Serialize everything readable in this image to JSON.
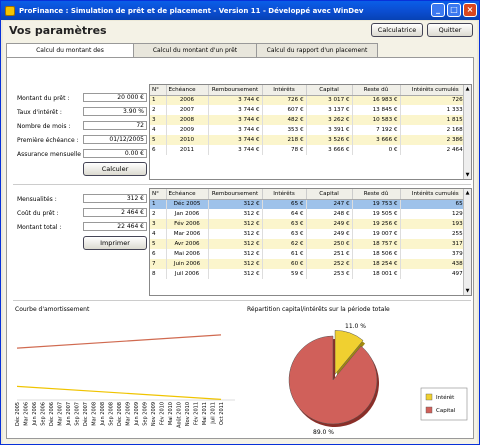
{
  "window": {
    "title": "ProFinance : Simulation de prêt et de placement - Version 11 - Développé avec WinDev",
    "minimize": "_",
    "maximize": "□",
    "close": "×"
  },
  "page": {
    "title": "Vos paramètres",
    "calc_button": "Calculatrice",
    "quit_button": "Quitter"
  },
  "tabs": [
    "Calcul du montant des remboursements",
    "Calcul du montant d'un prêt",
    "Calcul du rapport d'un placement"
  ],
  "loan": {
    "labels": {
      "amount": "Montant du prêt :",
      "rate": "Taux d'intérêt :",
      "months": "Nombre de mois :",
      "first": "Première échéance :",
      "insurance": "Assurance mensuelle :"
    },
    "values": {
      "amount": "20 000 €",
      "rate": "3.90 %",
      "months": "72",
      "first": "01/12/2005",
      "insurance": "0.00 €"
    },
    "button": "Calculer"
  },
  "totals": {
    "labels": {
      "monthly": "Mensualités :",
      "cost": "Coût du prêt :",
      "total": "Montant total :"
    },
    "values": {
      "monthly": "312 €",
      "cost": "2 464 €",
      "total": "22 464 €"
    },
    "button": "Imprimer"
  },
  "headers": [
    "N°",
    "Echéance",
    "Remboursement",
    "Intérêts",
    "Capital",
    "Reste dû",
    "Intérêts cumulés"
  ],
  "yearly_rows": [
    [
      "1",
      "2006",
      "3 744 €",
      "726 €",
      "3 017 €",
      "16 983 €",
      "726 €"
    ],
    [
      "2",
      "2007",
      "3 744 €",
      "607 €",
      "3 137 €",
      "13 845 €",
      "1 333 €"
    ],
    [
      "3",
      "2008",
      "3 744 €",
      "482 €",
      "3 262 €",
      "10 583 €",
      "1 815 €"
    ],
    [
      "4",
      "2009",
      "3 744 €",
      "353 €",
      "3 391 €",
      "7 192 €",
      "2 168 €"
    ],
    [
      "5",
      "2010",
      "3 744 €",
      "218 €",
      "3 526 €",
      "3 666 €",
      "2 386 €"
    ],
    [
      "6",
      "2011",
      "3 744 €",
      "78 €",
      "3 666 €",
      "0 €",
      "2 464 €"
    ]
  ],
  "monthly_rows": [
    [
      "1",
      "Déc 2005",
      "312 €",
      "65 €",
      "247 €",
      "19 753 €",
      "65 €"
    ],
    [
      "2",
      "Jan 2006",
      "312 €",
      "64 €",
      "248 €",
      "19 505 €",
      "129 €"
    ],
    [
      "3",
      "Fév 2006",
      "312 €",
      "63 €",
      "249 €",
      "19 256 €",
      "193 €"
    ],
    [
      "4",
      "Mar 2006",
      "312 €",
      "63 €",
      "249 €",
      "19 007 €",
      "255 €"
    ],
    [
      "5",
      "Avr 2006",
      "312 €",
      "62 €",
      "250 €",
      "18 757 €",
      "317 €"
    ],
    [
      "6",
      "Mai 2006",
      "312 €",
      "61 €",
      "251 €",
      "18 506 €",
      "379 €"
    ],
    [
      "7",
      "Juin 2006",
      "312 €",
      "60 €",
      "252 €",
      "18 254 €",
      "438 €"
    ],
    [
      "8",
      "Juil 2006",
      "312 €",
      "59 €",
      "253 €",
      "18 001 €",
      "497 €"
    ]
  ],
  "amort_chart": {
    "title": "Courbe d'amortissement",
    "x_ticks": [
      "Déc 2005",
      "Mar 2006",
      "Juin 2006",
      "Sep 2006",
      "Déc 2006",
      "Mar 2007",
      "Juin 2007",
      "Sep 2007",
      "Déc 2007",
      "Mar 2008",
      "Juin 2008",
      "Sep 2008",
      "Déc 2008",
      "Mar 2009",
      "Juin 2009",
      "Sep 2009",
      "Nov 2009",
      "Fév 2010",
      "Mai 2010",
      "Août 2010",
      "Nov 2010",
      "Fév 2011",
      "Mai 2011",
      "Juil 2011",
      "Oct 2011"
    ]
  },
  "chart_data": [
    {
      "type": "line",
      "title": "Courbe d'amortissement",
      "x": [
        "Déc 2005",
        "Oct 2011"
      ],
      "series": [
        {
          "values": [
            247,
            310
          ]
        },
        {
          "values": [
            65,
            3
          ]
        }
      ],
      "ylim": [
        0,
        400
      ]
    },
    {
      "type": "pie",
      "title": "Répartition capital/intérêts sur la période totale",
      "categories": [
        "Intérêt",
        "Capital"
      ],
      "values": [
        11.0,
        89.0
      ],
      "colors": {
        "Intérêt": "#f0d030",
        "Capital": "#d0605a"
      },
      "legend": "right"
    }
  ],
  "pie_chart": {
    "title": "Répartition capital/intérêts sur la période totale",
    "label_small": "11.0 %",
    "label_large": "89.0 %",
    "legend": [
      "Intérêt",
      "Capital"
    ]
  }
}
